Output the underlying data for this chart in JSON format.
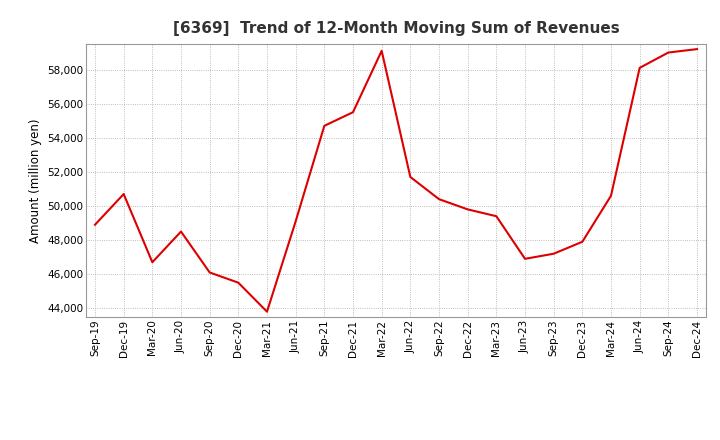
{
  "title": "[6369]  Trend of 12-Month Moving Sum of Revenues",
  "ylabel": "Amount (million yen)",
  "line_color": "#dd0000",
  "background_color": "#ffffff",
  "plot_background": "#ffffff",
  "grid_color": "#aaaaaa",
  "ylim": [
    43500,
    59500
  ],
  "yticks": [
    44000,
    46000,
    48000,
    50000,
    52000,
    54000,
    56000,
    58000
  ],
  "x_labels": [
    "Sep-19",
    "Dec-19",
    "Mar-20",
    "Jun-20",
    "Sep-20",
    "Dec-20",
    "Mar-21",
    "Jun-21",
    "Sep-21",
    "Dec-21",
    "Mar-22",
    "Jun-22",
    "Sep-22",
    "Dec-22",
    "Mar-23",
    "Jun-23",
    "Sep-23",
    "Dec-23",
    "Mar-24",
    "Jun-24",
    "Sep-24",
    "Dec-24"
  ],
  "y_values": [
    48900,
    50700,
    46700,
    48500,
    46100,
    45500,
    43800,
    49100,
    54700,
    55500,
    59100,
    51700,
    50400,
    49800,
    49400,
    46900,
    47200,
    47900,
    50600,
    58100,
    59000,
    59200
  ]
}
